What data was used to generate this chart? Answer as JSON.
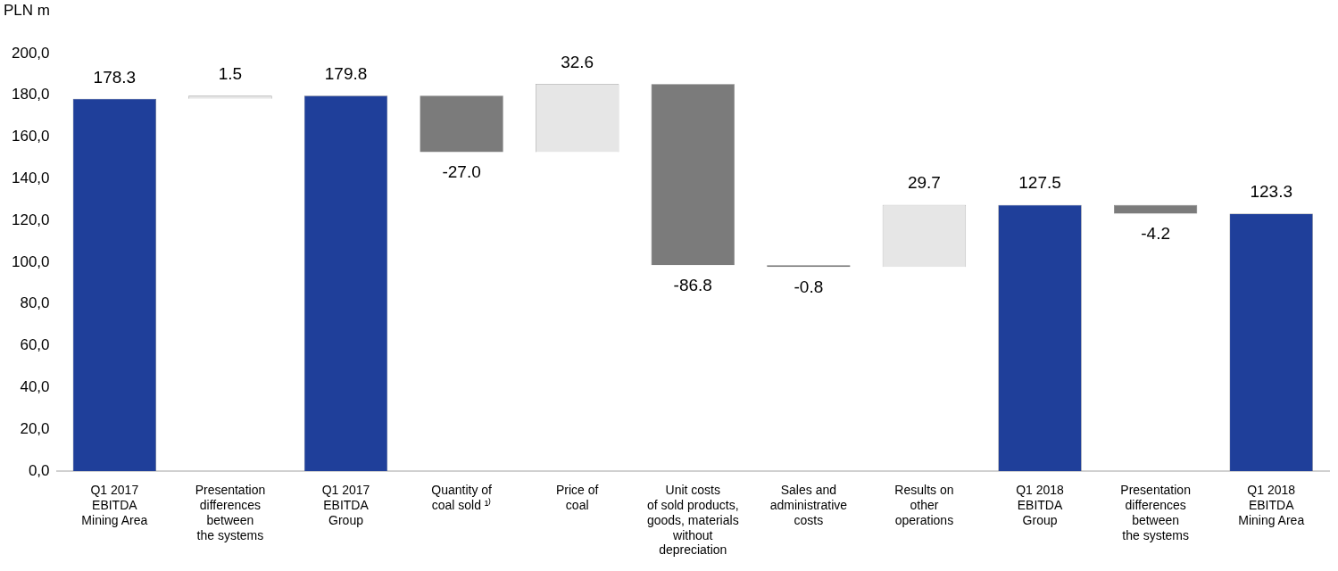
{
  "chart_data": {
    "type": "bar",
    "ylabel": "PLN m",
    "categories": [
      "Q1 2017\nEBITDA\nMining Area",
      "Presentation\ndifferences\nbetween\nthe systems",
      "Q1 2017\nEBITDA\nGroup",
      "Quantity of\ncoal sold ¹⁾",
      "Price of\ncoal",
      "Unit costs\nof sold products,\ngoods, materials\nwithout\ndepreciation",
      "Sales and\nadministrative\ncosts",
      "Results on\nother\noperations",
      "Q1 2018\nEBITDA\nGroup",
      "Presentation\ndifferences\nbetween\nthe systems",
      "Q1 2018\nEBITDA\nMining Area"
    ],
    "values": [
      178.3,
      1.5,
      179.8,
      -27.0,
      32.6,
      -86.8,
      -0.8,
      29.7,
      127.5,
      -4.2,
      123.3
    ],
    "base": [
      0,
      178.3,
      0,
      179.8,
      152.8,
      185.4,
      98.6,
      97.8,
      0,
      127.5,
      0
    ],
    "colors": [
      "#1f3f9a",
      "#e6e6e6",
      "#1f3f9a",
      "#7b7b7b",
      "#e6e6e6",
      "#7b7b7b",
      "#7b7b7b",
      "#e6e6e6",
      "#1f3f9a",
      "#7b7b7b",
      "#1f3f9a"
    ],
    "value_labels": [
      "178.3",
      "1.5",
      "179.8",
      "-27.0",
      "32.6",
      "-86.8",
      "-0.8",
      "29.7",
      "127.5",
      "-4.2",
      "123.3"
    ],
    "ylim": [
      0,
      200
    ],
    "yticks": [
      {
        "value": 0,
        "label": "0,0"
      },
      {
        "value": 20,
        "label": "20,0"
      },
      {
        "value": 40,
        "label": "40,0"
      },
      {
        "value": 60,
        "label": "60,0"
      },
      {
        "value": 80,
        "label": "80,0"
      },
      {
        "value": 100,
        "label": "100,0"
      },
      {
        "value": 120,
        "label": "120,0"
      },
      {
        "value": 140,
        "label": "140,0"
      },
      {
        "value": 160,
        "label": "160,0"
      },
      {
        "value": 180,
        "label": "180,0"
      },
      {
        "value": 200,
        "label": "200,0"
      }
    ],
    "grid": false,
    "legend": false
  }
}
